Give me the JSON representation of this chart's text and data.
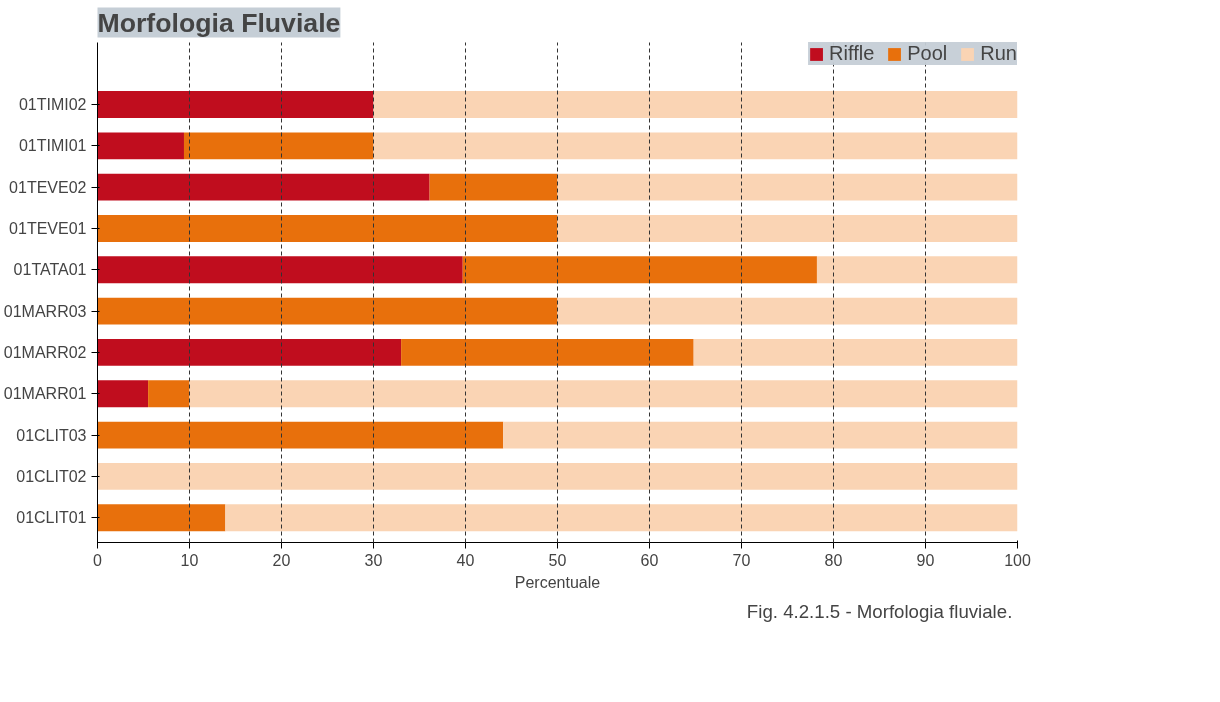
{
  "chart_data": {
    "type": "bar",
    "orientation": "horizontal",
    "stacked": true,
    "title": "Morfologia Fluviale",
    "xlabel": "Percentuale",
    "categories": [
      "01TIMI02",
      "01TIMI01",
      "01TEVE02",
      "01TEVE01",
      "01TATA01",
      "01MARR03",
      "01MARR02",
      "01MARR01",
      "01CLIT03",
      "01CLIT02",
      "01CLIT01"
    ],
    "series": [
      {
        "name": "Riffle",
        "color": "#c00d1e",
        "values": [
          30,
          9.4,
          36.1,
          0,
          39.7,
          0,
          33,
          5.5,
          0,
          0,
          0
        ]
      },
      {
        "name": "Pool",
        "color": "#e8700c",
        "values": [
          0,
          20.6,
          13.9,
          50,
          38.5,
          50,
          31.8,
          4.5,
          44.1,
          0,
          13.9
        ]
      },
      {
        "name": "Run",
        "color": "#fad4b4",
        "values": [
          70,
          70,
          50,
          50,
          21.8,
          50,
          35.2,
          90,
          55.9,
          100,
          86.1
        ]
      }
    ],
    "xlim": [
      0,
      100
    ],
    "xticks": [
      0,
      10,
      20,
      30,
      40,
      50,
      60,
      70,
      80,
      90,
      100
    ],
    "grid": "x",
    "legend": "top right",
    "annotations": [
      "Fig. 4.2.1.5 - Morfologia  fluviale."
    ]
  }
}
